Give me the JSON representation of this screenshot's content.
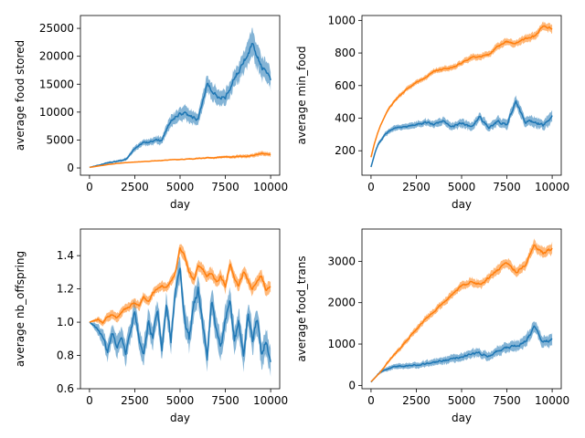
{
  "chart_data": [
    {
      "type": "line",
      "xlabel": "day",
      "ylabel": "average food stored",
      "xlim": [
        -500,
        10500
      ],
      "ylim": [
        -1300,
        27300
      ],
      "xticks": [
        0,
        2500,
        5000,
        7500,
        10000
      ],
      "yticks": [
        0,
        5000,
        10000,
        15000,
        20000,
        25000
      ],
      "series": [
        {
          "color": "#1f77b4",
          "x": [
            0,
            500,
            1000,
            1500,
            2000,
            2500,
            3000,
            3500,
            4000,
            4500,
            5000,
            5500,
            6000,
            6500,
            7000,
            7500,
            8000,
            8500,
            9000,
            9500,
            10000
          ],
          "y": [
            100,
            500,
            900,
            1200,
            1500,
            3500,
            4500,
            4800,
            5000,
            8500,
            9800,
            9500,
            8500,
            15000,
            13000,
            12500,
            16000,
            19000,
            22000,
            18000,
            16000
          ],
          "spread": [
            0,
            100,
            200,
            250,
            300,
            500,
            600,
            700,
            800,
            1200,
            1400,
            1400,
            1200,
            1800,
            1600,
            1500,
            1800,
            2200,
            2600,
            2200,
            2000
          ]
        },
        {
          "color": "#ff7f0e",
          "x": [
            0,
            500,
            1000,
            1500,
            2000,
            2500,
            3000,
            3500,
            4000,
            4500,
            5000,
            5500,
            6000,
            6500,
            7000,
            7500,
            8000,
            8500,
            9000,
            9500,
            10000
          ],
          "y": [
            100,
            350,
            600,
            800,
            950,
            1050,
            1150,
            1250,
            1350,
            1450,
            1500,
            1600,
            1700,
            1800,
            1850,
            1950,
            2000,
            2100,
            2200,
            2600,
            2500
          ],
          "spread": [
            0,
            30,
            50,
            60,
            70,
            80,
            90,
            100,
            110,
            120,
            140,
            160,
            180,
            200,
            220,
            260,
            300,
            340,
            380,
            420,
            450
          ]
        }
      ]
    },
    {
      "type": "line",
      "xlabel": "day",
      "ylabel": "average min_food",
      "xlim": [
        -500,
        10500
      ],
      "ylim": [
        50,
        1030
      ],
      "xticks": [
        0,
        2500,
        5000,
        7500,
        10000
      ],
      "yticks": [
        200,
        400,
        600,
        800,
        1000
      ],
      "series": [
        {
          "color": "#1f77b4",
          "x": [
            0,
            200,
            400,
            700,
            1000,
            1500,
            2000,
            2500,
            3000,
            3500,
            4000,
            4500,
            5000,
            5500,
            6000,
            6500,
            7000,
            7500,
            8000,
            8500,
            9000,
            9500,
            10000
          ],
          "y": [
            100,
            180,
            240,
            290,
            320,
            350,
            345,
            360,
            375,
            360,
            385,
            350,
            370,
            345,
            410,
            340,
            380,
            360,
            500,
            375,
            380,
            360,
            410
          ],
          "spread": [
            0,
            8,
            12,
            15,
            18,
            20,
            20,
            22,
            24,
            24,
            26,
            26,
            28,
            28,
            32,
            30,
            32,
            32,
            40,
            35,
            38,
            36,
            40
          ]
        },
        {
          "color": "#ff7f0e",
          "x": [
            0,
            200,
            400,
            700,
            1000,
            1500,
            2000,
            2500,
            3000,
            3500,
            4000,
            4500,
            5000,
            5500,
            6000,
            6500,
            7000,
            7500,
            8000,
            8500,
            9000,
            9500,
            10000
          ],
          "y": [
            160,
            250,
            320,
            400,
            460,
            530,
            580,
            620,
            650,
            690,
            700,
            710,
            740,
            770,
            780,
            790,
            840,
            870,
            860,
            890,
            900,
            960,
            950
          ],
          "spread": [
            0,
            5,
            8,
            10,
            12,
            14,
            15,
            16,
            17,
            18,
            18,
            19,
            20,
            21,
            22,
            22,
            24,
            25,
            25,
            26,
            27,
            28,
            28
          ]
        }
      ]
    },
    {
      "type": "line",
      "xlabel": "day",
      "ylabel": "average nb_offspring",
      "xlim": [
        -500,
        10500
      ],
      "ylim": [
        0.6,
        1.56
      ],
      "xticks": [
        0,
        2500,
        5000,
        7500,
        10000
      ],
      "yticks": [
        0.6,
        0.8,
        1.0,
        1.2,
        1.4
      ],
      "series": [
        {
          "color": "#1f77b4",
          "x": [
            0,
            250,
            500,
            750,
            1000,
            1250,
            1500,
            1750,
            2000,
            2250,
            2500,
            2750,
            3000,
            3250,
            3500,
            3750,
            4000,
            4250,
            4500,
            4750,
            5000,
            5250,
            5500,
            5750,
            6000,
            6250,
            6500,
            6750,
            7000,
            7250,
            7500,
            7750,
            8000,
            8250,
            8500,
            8750,
            9000,
            9250,
            9500,
            9750,
            10000
          ],
          "y": [
            1.0,
            0.98,
            0.95,
            0.9,
            0.82,
            0.95,
            0.85,
            0.9,
            0.8,
            0.95,
            1.05,
            0.9,
            0.82,
            1.0,
            0.9,
            1.08,
            0.85,
            1.12,
            0.9,
            1.2,
            1.3,
            1.0,
            0.9,
            1.1,
            1.2,
            1.0,
            0.78,
            1.15,
            0.95,
            0.85,
            1.0,
            1.12,
            0.9,
            1.0,
            0.8,
            1.05,
            0.9,
            1.02,
            0.8,
            0.9,
            0.75
          ],
          "spread": [
            0,
            0.02,
            0.04,
            0.05,
            0.06,
            0.06,
            0.07,
            0.07,
            0.07,
            0.07,
            0.08,
            0.08,
            0.08,
            0.08,
            0.08,
            0.08,
            0.08,
            0.08,
            0.08,
            0.08,
            0.09,
            0.09,
            0.09,
            0.09,
            0.09,
            0.09,
            0.09,
            0.09,
            0.09,
            0.09,
            0.09,
            0.09,
            0.09,
            0.09,
            0.09,
            0.09,
            0.09,
            0.09,
            0.09,
            0.09,
            0.09
          ]
        },
        {
          "color": "#ff7f0e",
          "x": [
            0,
            250,
            500,
            750,
            1000,
            1250,
            1500,
            1750,
            2000,
            2250,
            2500,
            2750,
            3000,
            3250,
            3500,
            3750,
            4000,
            4250,
            4500,
            4750,
            5000,
            5250,
            5500,
            5750,
            6000,
            6250,
            6500,
            6750,
            7000,
            7250,
            7500,
            7750,
            8000,
            8250,
            8500,
            8750,
            9000,
            9250,
            9500,
            9750,
            10000
          ],
          "y": [
            1.0,
            1.01,
            1.02,
            1.0,
            1.03,
            1.05,
            1.02,
            1.06,
            1.08,
            1.1,
            1.12,
            1.1,
            1.15,
            1.12,
            1.18,
            1.2,
            1.22,
            1.2,
            1.25,
            1.3,
            1.45,
            1.4,
            1.3,
            1.25,
            1.35,
            1.32,
            1.28,
            1.3,
            1.24,
            1.28,
            1.22,
            1.35,
            1.25,
            1.22,
            1.3,
            1.25,
            1.2,
            1.25,
            1.28,
            1.2,
            1.22
          ],
          "spread": [
            0,
            0.01,
            0.02,
            0.02,
            0.03,
            0.03,
            0.03,
            0.03,
            0.03,
            0.03,
            0.03,
            0.03,
            0.03,
            0.03,
            0.03,
            0.03,
            0.03,
            0.03,
            0.03,
            0.03,
            0.04,
            0.04,
            0.04,
            0.04,
            0.04,
            0.04,
            0.04,
            0.04,
            0.04,
            0.04,
            0.04,
            0.04,
            0.04,
            0.04,
            0.04,
            0.04,
            0.04,
            0.04,
            0.04,
            0.04,
            0.04
          ]
        }
      ]
    },
    {
      "type": "line",
      "xlabel": "day",
      "ylabel": "average food_trans",
      "xlim": [
        -500,
        10500
      ],
      "ylim": [
        -80,
        3780
      ],
      "xticks": [
        0,
        2500,
        5000,
        7500,
        10000
      ],
      "yticks": [
        0,
        1000,
        2000,
        3000
      ],
      "series": [
        {
          "color": "#1f77b4",
          "x": [
            0,
            250,
            500,
            750,
            1000,
            1500,
            2000,
            2500,
            3000,
            3500,
            4000,
            4500,
            5000,
            5500,
            6000,
            6500,
            7000,
            7500,
            8000,
            8500,
            9000,
            9500,
            10000
          ],
          "y": [
            80,
            200,
            320,
            380,
            420,
            470,
            480,
            500,
            530,
            560,
            600,
            640,
            700,
            750,
            780,
            700,
            850,
            900,
            950,
            1050,
            1400,
            1050,
            1100
          ],
          "spread": [
            0,
            20,
            40,
            50,
            60,
            70,
            75,
            80,
            85,
            90,
            95,
            100,
            110,
            115,
            120,
            110,
            125,
            130,
            140,
            150,
            170,
            150,
            160
          ]
        },
        {
          "color": "#ff7f0e",
          "x": [
            0,
            250,
            500,
            750,
            1000,
            1500,
            2000,
            2500,
            3000,
            3500,
            4000,
            4500,
            5000,
            5500,
            6000,
            6500,
            7000,
            7500,
            8000,
            8500,
            9000,
            9500,
            10000
          ],
          "y": [
            90,
            200,
            320,
            450,
            600,
            850,
            1100,
            1350,
            1600,
            1800,
            2000,
            2200,
            2400,
            2500,
            2450,
            2600,
            2800,
            2950,
            2750,
            2900,
            3400,
            3200,
            3300
          ],
          "spread": [
            0,
            15,
            25,
            35,
            45,
            60,
            70,
            80,
            85,
            90,
            95,
            100,
            110,
            115,
            115,
            120,
            125,
            130,
            125,
            130,
            150,
            145,
            150
          ]
        }
      ]
    }
  ]
}
